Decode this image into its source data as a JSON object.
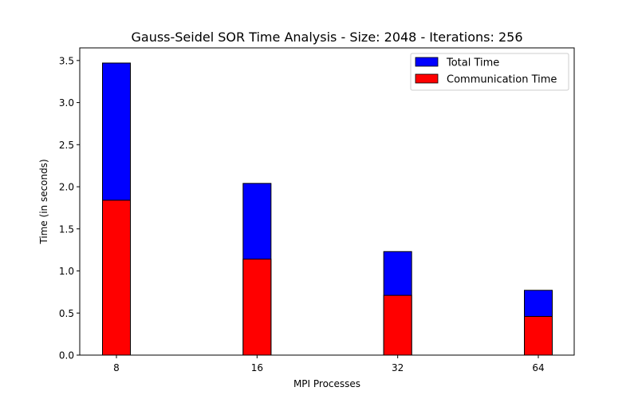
{
  "chart_data": {
    "type": "bar",
    "title": "Gauss-Seidel SOR Time Analysis - Size: 2048 - Iterations: 256",
    "xlabel": "MPI Processes",
    "ylabel": "Time (in seconds)",
    "categories": [
      "8",
      "16",
      "32",
      "64"
    ],
    "ylim": [
      0,
      3.65
    ],
    "yticks": [
      "0.0",
      "0.5",
      "1.0",
      "1.5",
      "2.0",
      "2.5",
      "3.0",
      "3.5"
    ],
    "grid": false,
    "legend_position": "top-right",
    "series": [
      {
        "name": "Total Time",
        "color": "#0000ff",
        "values": [
          3.47,
          2.04,
          1.23,
          0.77
        ]
      },
      {
        "name": "Communication Time",
        "color": "#ff0000",
        "values": [
          1.84,
          1.14,
          0.71,
          0.46
        ]
      }
    ]
  }
}
